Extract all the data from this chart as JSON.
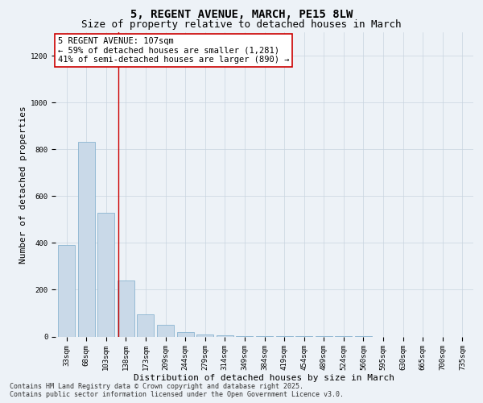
{
  "title": "5, REGENT AVENUE, MARCH, PE15 8LW",
  "subtitle": "Size of property relative to detached houses in March",
  "xlabel": "Distribution of detached houses by size in March",
  "ylabel": "Number of detached properties",
  "categories": [
    "33sqm",
    "68sqm",
    "103sqm",
    "138sqm",
    "173sqm",
    "209sqm",
    "244sqm",
    "279sqm",
    "314sqm",
    "349sqm",
    "384sqm",
    "419sqm",
    "454sqm",
    "489sqm",
    "524sqm",
    "560sqm",
    "595sqm",
    "630sqm",
    "665sqm",
    "700sqm",
    "735sqm"
  ],
  "bar_heights": [
    390,
    830,
    530,
    240,
    95,
    50,
    18,
    10,
    6,
    3,
    2,
    1,
    1,
    1,
    1,
    1,
    0,
    0,
    0,
    0,
    0
  ],
  "bar_color": "#c9d9e8",
  "bar_edgecolor": "#8ab4d0",
  "vline_x": 2.62,
  "vline_color": "#cc0000",
  "ylim": [
    0,
    1300
  ],
  "yticks": [
    0,
    200,
    400,
    600,
    800,
    1000,
    1200
  ],
  "annotation_text": "5 REGENT AVENUE: 107sqm\n← 59% of detached houses are smaller (1,281)\n41% of semi-detached houses are larger (890) →",
  "annotation_box_facecolor": "#ffffff",
  "annotation_box_edgecolor": "#cc0000",
  "background_color": "#edf2f7",
  "grid_color": "#c8d4e0",
  "footer_line1": "Contains HM Land Registry data © Crown copyright and database right 2025.",
  "footer_line2": "Contains public sector information licensed under the Open Government Licence v3.0.",
  "title_fontsize": 10,
  "subtitle_fontsize": 9,
  "xlabel_fontsize": 8,
  "ylabel_fontsize": 8,
  "tick_fontsize": 6.5,
  "annotation_fontsize": 7.5,
  "footer_fontsize": 6
}
